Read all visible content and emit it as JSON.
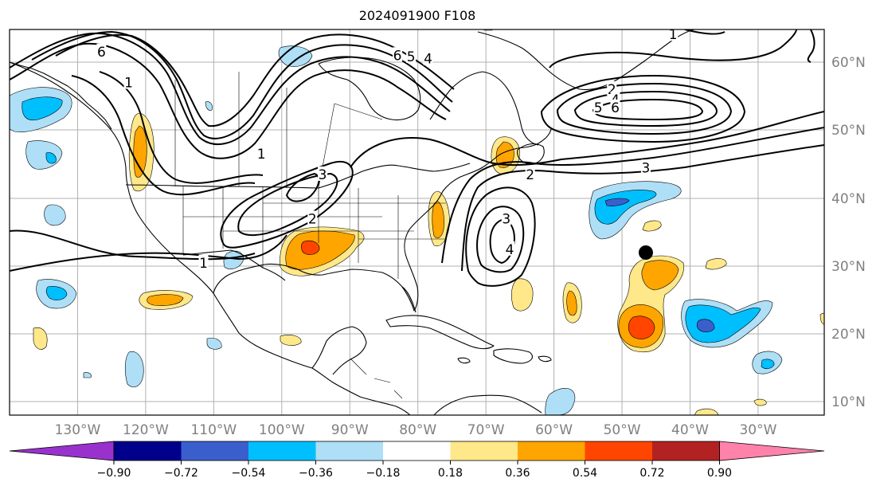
{
  "title": "2024091900 F108",
  "map": {
    "lat_labels": [
      {
        "lat": 60,
        "text": "60°N"
      },
      {
        "lat": 50,
        "text": "50°N"
      },
      {
        "lat": 40,
        "text": "40°N"
      },
      {
        "lat": 30,
        "text": "30°N"
      },
      {
        "lat": 20,
        "text": "20°N"
      },
      {
        "lat": 10,
        "text": "10°N"
      }
    ],
    "lon_labels": [
      {
        "lon": -130,
        "text": "130°W"
      },
      {
        "lon": -120,
        "text": "120°W"
      },
      {
        "lon": -110,
        "text": "110°W"
      },
      {
        "lon": -100,
        "text": "100°W"
      },
      {
        "lon": -90,
        "text": "90°W"
      },
      {
        "lon": -80,
        "text": "80°W"
      },
      {
        "lon": -70,
        "text": "70°W"
      },
      {
        "lon": -60,
        "text": "60°W"
      },
      {
        "lon": -50,
        "text": "50°W"
      },
      {
        "lon": -40,
        "text": "40°W"
      },
      {
        "lon": -30,
        "text": "30°W"
      }
    ],
    "contour_labels": [
      {
        "text": "6",
        "lon": -126.5,
        "lat": 61.5
      },
      {
        "text": "1",
        "lon": -122.5,
        "lat": 57
      },
      {
        "text": "6",
        "lon": -83,
        "lat": 61
      },
      {
        "text": "5",
        "lon": -81,
        "lat": 60.8
      },
      {
        "text": "4",
        "lon": -78.5,
        "lat": 60.5
      },
      {
        "text": "1",
        "lon": -103,
        "lat": 46.5
      },
      {
        "text": "3",
        "lon": -94,
        "lat": 43.5
      },
      {
        "text": "2",
        "lon": -95.5,
        "lat": 37
      },
      {
        "text": "1",
        "lon": -111.5,
        "lat": 30.5
      },
      {
        "text": "3",
        "lon": -67,
        "lat": 37
      },
      {
        "text": "4",
        "lon": -66.5,
        "lat": 32.5
      },
      {
        "text": "2",
        "lon": -63.5,
        "lat": 43.5
      },
      {
        "text": "3",
        "lon": -46.5,
        "lat": 44.5
      },
      {
        "text": "2",
        "lon": -51.5,
        "lat": 56
      },
      {
        "text": "4",
        "lon": -51,
        "lat": 54.5
      },
      {
        "text": "5",
        "lon": -53.5,
        "lat": 53.3
      },
      {
        "text": "6",
        "lon": -51,
        "lat": 53.3
      },
      {
        "text": "1",
        "lon": -42.5,
        "lat": 64
      }
    ],
    "marker": {
      "name": "storm-position",
      "lon": -46.5,
      "lat": 32,
      "color": "#000000"
    }
  },
  "colorbar": {
    "ticks": [
      "−0.90",
      "−0.72",
      "−0.54",
      "−0.36",
      "−0.18",
      "0.18",
      "0.36",
      "0.54",
      "0.72",
      "0.90"
    ],
    "colors": [
      "#9932cc",
      "#00008b",
      "#3a5fcd",
      "#00bfff",
      "#aedff7",
      "#ffffff",
      "#ffe88a",
      "#ffa500",
      "#ff4500",
      "#b22222",
      "#ff82ab"
    ]
  }
}
